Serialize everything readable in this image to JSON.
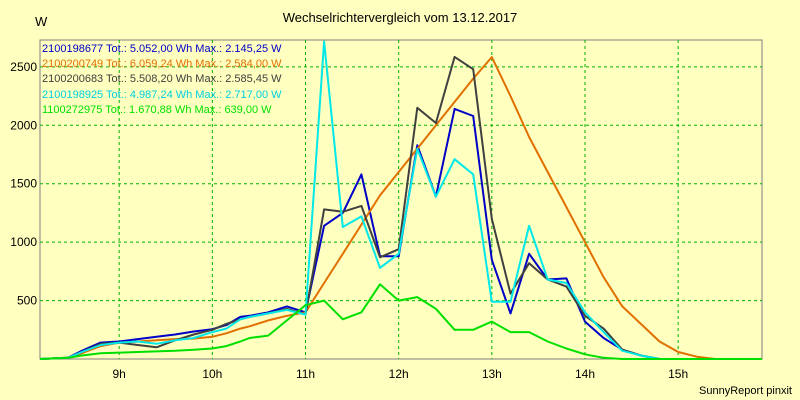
{
  "chart_data": {
    "type": "line",
    "title": "Wechselrichtervergleich vom 13.12.2017",
    "ylabel": "W",
    "footer": "SunnyReport pinxit",
    "x_ticks": [
      "9h",
      "10h",
      "11h",
      "12h",
      "13h",
      "14h",
      "15h"
    ],
    "x_tick_values": [
      9,
      10,
      11,
      12,
      13,
      14,
      15
    ],
    "y_ticks": [
      "500",
      "1000",
      "1500",
      "2000",
      "2500"
    ],
    "y_tick_values": [
      500,
      1000,
      1500,
      2000,
      2500
    ],
    "xlim": [
      8.15,
      15.9
    ],
    "ylim": [
      0,
      2730
    ],
    "grid": true,
    "background": "#ffffc0",
    "gridcolor": "#00b000",
    "legend_position": "top-left",
    "series": [
      {
        "name": "2100198677",
        "legend": "2100198677 Tot.: 5.052,00 Wh Max.: 2.145,25 W",
        "color": "#0000c8",
        "x": [
          8.15,
          8.45,
          8.6,
          8.8,
          9.0,
          9.2,
          9.4,
          9.6,
          9.8,
          10.0,
          10.15,
          10.3,
          10.4,
          10.6,
          10.8,
          11.0,
          11.2,
          11.4,
          11.6,
          11.8,
          12.0,
          12.2,
          12.4,
          12.6,
          12.8,
          13.0,
          13.2,
          13.4,
          13.6,
          13.8,
          14.0,
          14.2,
          14.4,
          14.6,
          14.8,
          15.0,
          15.2,
          15.4,
          15.6,
          15.9
        ],
        "y": [
          0,
          10,
          70,
          140,
          150,
          170,
          190,
          210,
          235,
          255,
          290,
          360,
          370,
          400,
          450,
          400,
          1140,
          1250,
          1580,
          880,
          880,
          1830,
          1390,
          2140,
          2080,
          850,
          390,
          900,
          680,
          690,
          320,
          180,
          80,
          30,
          0,
          0,
          0,
          0,
          0,
          0
        ]
      },
      {
        "name": "2100200749",
        "legend": "2100200749 Tot.: 6.059,24 Wh Max.: 2.584,00 W",
        "color": "#e07000",
        "x": [
          8.15,
          8.45,
          8.6,
          8.8,
          9.0,
          9.2,
          9.4,
          9.6,
          9.8,
          10.0,
          10.15,
          10.3,
          10.4,
          10.6,
          10.8,
          11.0,
          11.2,
          11.4,
          11.6,
          11.8,
          12.0,
          12.2,
          12.4,
          12.6,
          12.8,
          13.0,
          13.2,
          13.4,
          13.6,
          13.8,
          14.0,
          14.2,
          14.4,
          14.6,
          14.8,
          15.0,
          15.2,
          15.4,
          15.6,
          15.9
        ],
        "y": [
          0,
          10,
          50,
          110,
          140,
          150,
          160,
          170,
          175,
          190,
          220,
          260,
          280,
          330,
          370,
          400,
          650,
          900,
          1150,
          1400,
          1600,
          1800,
          2000,
          2200,
          2400,
          2584,
          2250,
          1900,
          1600,
          1300,
          1000,
          700,
          450,
          300,
          150,
          60,
          20,
          0,
          0,
          0
        ]
      },
      {
        "name": "2100200683",
        "legend": "2100200683 Tot.: 5.508,20 Wh Max.: 2.585,45 W",
        "color": "#404040",
        "x": [
          8.15,
          8.45,
          8.6,
          8.8,
          9.0,
          9.2,
          9.4,
          9.6,
          9.8,
          10.0,
          10.15,
          10.3,
          10.4,
          10.6,
          10.8,
          11.0,
          11.2,
          11.4,
          11.6,
          11.8,
          12.0,
          12.2,
          12.4,
          12.6,
          12.8,
          13.0,
          13.2,
          13.4,
          13.6,
          13.8,
          14.0,
          14.2,
          14.4,
          14.6,
          14.8,
          15.0,
          15.2,
          15.4,
          15.6,
          15.9
        ],
        "y": [
          0,
          10,
          60,
          130,
          140,
          120,
          100,
          160,
          210,
          250,
          300,
          340,
          360,
          390,
          430,
          380,
          1280,
          1260,
          1310,
          870,
          940,
          2150,
          2020,
          2585,
          2480,
          1200,
          560,
          820,
          680,
          620,
          370,
          260,
          80,
          30,
          0,
          0,
          0,
          0,
          0,
          0
        ]
      },
      {
        "name": "2100198925",
        "legend": "2100198925 Tot.: 4.987,24 Wh Max.: 2.717,00 W",
        "color": "#00e8e8",
        "x": [
          8.15,
          8.45,
          8.6,
          8.8,
          9.0,
          9.2,
          9.4,
          9.6,
          9.8,
          10.0,
          10.15,
          10.3,
          10.4,
          10.6,
          10.8,
          11.0,
          11.2,
          11.4,
          11.6,
          11.8,
          12.0,
          12.2,
          12.4,
          12.6,
          12.8,
          13.0,
          13.2,
          13.4,
          13.6,
          13.8,
          14.0,
          14.2,
          14.4,
          14.6,
          14.8,
          15.0,
          15.2,
          15.4,
          15.6,
          15.9
        ],
        "y": [
          0,
          10,
          60,
          120,
          140,
          150,
          130,
          160,
          180,
          230,
          260,
          340,
          360,
          390,
          420,
          380,
          2717,
          1130,
          1220,
          780,
          900,
          1800,
          1390,
          1710,
          1580,
          490,
          490,
          1140,
          680,
          650,
          400,
          230,
          70,
          30,
          0,
          0,
          0,
          0,
          0,
          0
        ]
      },
      {
        "name": "1100272975",
        "legend": "1100272975 Tot.: 1.670,88 Wh Max.: 639,00 W",
        "color": "#00e000",
        "x": [
          8.15,
          8.45,
          8.6,
          8.8,
          9.0,
          9.2,
          9.4,
          9.6,
          9.8,
          10.0,
          10.15,
          10.3,
          10.4,
          10.6,
          10.8,
          11.0,
          11.2,
          11.4,
          11.6,
          11.8,
          12.0,
          12.2,
          12.4,
          12.6,
          12.8,
          13.0,
          13.2,
          13.4,
          13.6,
          13.8,
          14.0,
          14.2,
          14.4,
          14.6,
          14.8,
          15.0,
          15.2,
          15.4,
          15.6,
          15.9
        ],
        "y": [
          0,
          10,
          30,
          50,
          55,
          60,
          65,
          70,
          80,
          90,
          110,
          150,
          180,
          200,
          330,
          460,
          500,
          340,
          400,
          639,
          500,
          530,
          430,
          250,
          250,
          320,
          230,
          230,
          150,
          90,
          40,
          10,
          0,
          0,
          0,
          0,
          0,
          0,
          0,
          0
        ]
      }
    ]
  }
}
